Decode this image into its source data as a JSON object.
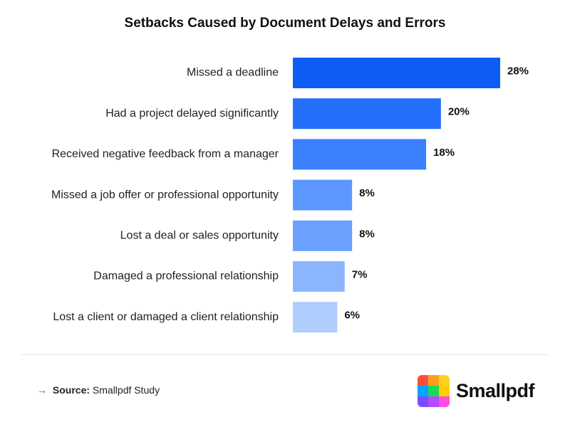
{
  "chart_data": {
    "type": "bar",
    "orientation": "horizontal",
    "title": "Setbacks Caused by Document Delays and Errors",
    "categories": [
      "Missed a deadline",
      "Had a project delayed significantly",
      "Received negative feedback from a manager",
      "Missed a job offer or professional opportunity",
      "Lost a deal or sales opportunity",
      "Damaged a professional relationship",
      "Lost a client or damaged a client relationship"
    ],
    "values": [
      28,
      20,
      18,
      8,
      8,
      7,
      6
    ],
    "value_labels": [
      "28%",
      "20%",
      "18%",
      "8%",
      "8%",
      "7%",
      "6%"
    ],
    "bar_colors": [
      "#0d5cf5",
      "#2470fc",
      "#3a80ff",
      "#5c97ff",
      "#6ba0ff",
      "#8cb5ff",
      "#b0cdff"
    ],
    "xlim": [
      0,
      28
    ],
    "grid": false,
    "legend": "none"
  },
  "footer": {
    "source_label": "Source:",
    "source_text": "Smallpdf Study",
    "arrow_icon": "arrow-right-icon",
    "accent_color": "#1a6bff"
  },
  "brand": {
    "name": "Smallpdf",
    "logo_icon": "smallpdf-logo-icon",
    "logo_colors": [
      "#ff4d3d",
      "#ff9f1c",
      "#ffd21f",
      "#00a3ff",
      "#1fd65b",
      "#ffcc00",
      "#7a4dff",
      "#b34dff",
      "#ff4de1"
    ]
  }
}
